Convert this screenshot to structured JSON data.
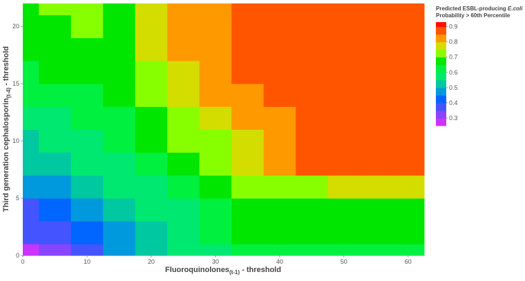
{
  "chart_data": {
    "type": "contour",
    "xlabel": {
      "main": "Fluoroquinolones",
      "sub": "(t-1)",
      "tail": " - threshold"
    },
    "ylabel": {
      "main": "Third generation cephalosporin",
      "sub": "(t-4)",
      "tail": " - threshold"
    },
    "colorbar_title": {
      "line1": "Predicted ESBL-producing ",
      "line1_italic": "E.coli",
      "line2": "Probability > 60th Percentile"
    },
    "x": [
      0,
      5,
      10,
      15,
      20,
      25,
      30,
      35,
      40,
      45,
      50,
      55,
      60
    ],
    "y": [
      0,
      2,
      4,
      6,
      8,
      10,
      12,
      14,
      16,
      18,
      20,
      22
    ],
    "z": [
      [
        0.28,
        0.32,
        0.38,
        0.45,
        0.5,
        0.55,
        0.58,
        0.63,
        0.63,
        0.63,
        0.63,
        0.63,
        0.63
      ],
      [
        0.35,
        0.38,
        0.42,
        0.48,
        0.52,
        0.56,
        0.6,
        0.66,
        0.66,
        0.66,
        0.66,
        0.66,
        0.66
      ],
      [
        0.38,
        0.42,
        0.45,
        0.52,
        0.55,
        0.58,
        0.62,
        0.68,
        0.68,
        0.68,
        0.68,
        0.68,
        0.68
      ],
      [
        0.45,
        0.48,
        0.5,
        0.55,
        0.58,
        0.62,
        0.66,
        0.72,
        0.73,
        0.74,
        0.76,
        0.76,
        0.76
      ],
      [
        0.5,
        0.52,
        0.55,
        0.58,
        0.62,
        0.66,
        0.7,
        0.76,
        0.82,
        0.85,
        0.86,
        0.86,
        0.86
      ],
      [
        0.52,
        0.55,
        0.57,
        0.6,
        0.65,
        0.7,
        0.74,
        0.78,
        0.83,
        0.86,
        0.87,
        0.87,
        0.87
      ],
      [
        0.55,
        0.57,
        0.6,
        0.63,
        0.68,
        0.74,
        0.77,
        0.8,
        0.84,
        0.86,
        0.87,
        0.87,
        0.87
      ],
      [
        0.6,
        0.6,
        0.62,
        0.65,
        0.7,
        0.76,
        0.8,
        0.83,
        0.86,
        0.87,
        0.87,
        0.87,
        0.87
      ],
      [
        0.64,
        0.65,
        0.66,
        0.67,
        0.72,
        0.78,
        0.82,
        0.86,
        0.87,
        0.87,
        0.87,
        0.87,
        0.87
      ],
      [
        0.66,
        0.67,
        0.68,
        0.68,
        0.75,
        0.8,
        0.83,
        0.87,
        0.87,
        0.87,
        0.87,
        0.87,
        0.87
      ],
      [
        0.67,
        0.69,
        0.7,
        0.68,
        0.76,
        0.81,
        0.83,
        0.87,
        0.87,
        0.87,
        0.87,
        0.87,
        0.87
      ],
      [
        0.68,
        0.7,
        0.74,
        0.68,
        0.76,
        0.81,
        0.83,
        0.87,
        0.87,
        0.87,
        0.87,
        0.87,
        0.87
      ]
    ],
    "levels": [
      0.25,
      0.3,
      0.35,
      0.4,
      0.45,
      0.5,
      0.55,
      0.6,
      0.65,
      0.7,
      0.75,
      0.8,
      0.85,
      0.9
    ],
    "colors": [
      "#cc33ff",
      "#8844ff",
      "#4455ff",
      "#0066ff",
      "#0099dd",
      "#00c8a0",
      "#00e870",
      "#00f040",
      "#00e600",
      "#88ff00",
      "#d4dd00",
      "#ff9900",
      "#ff5500",
      "#ff1100"
    ],
    "xlim": [
      0,
      62.5
    ],
    "ylim": [
      0,
      22
    ],
    "xticks": [
      0,
      10,
      20,
      30,
      40,
      50,
      60
    ],
    "yticks": [
      0,
      5,
      10,
      15,
      20
    ],
    "colorbar_lim": [
      0.25,
      0.93
    ],
    "colorbar_ticks": [
      0.3,
      0.4,
      0.5,
      0.6,
      0.7,
      0.8,
      0.9
    ]
  }
}
